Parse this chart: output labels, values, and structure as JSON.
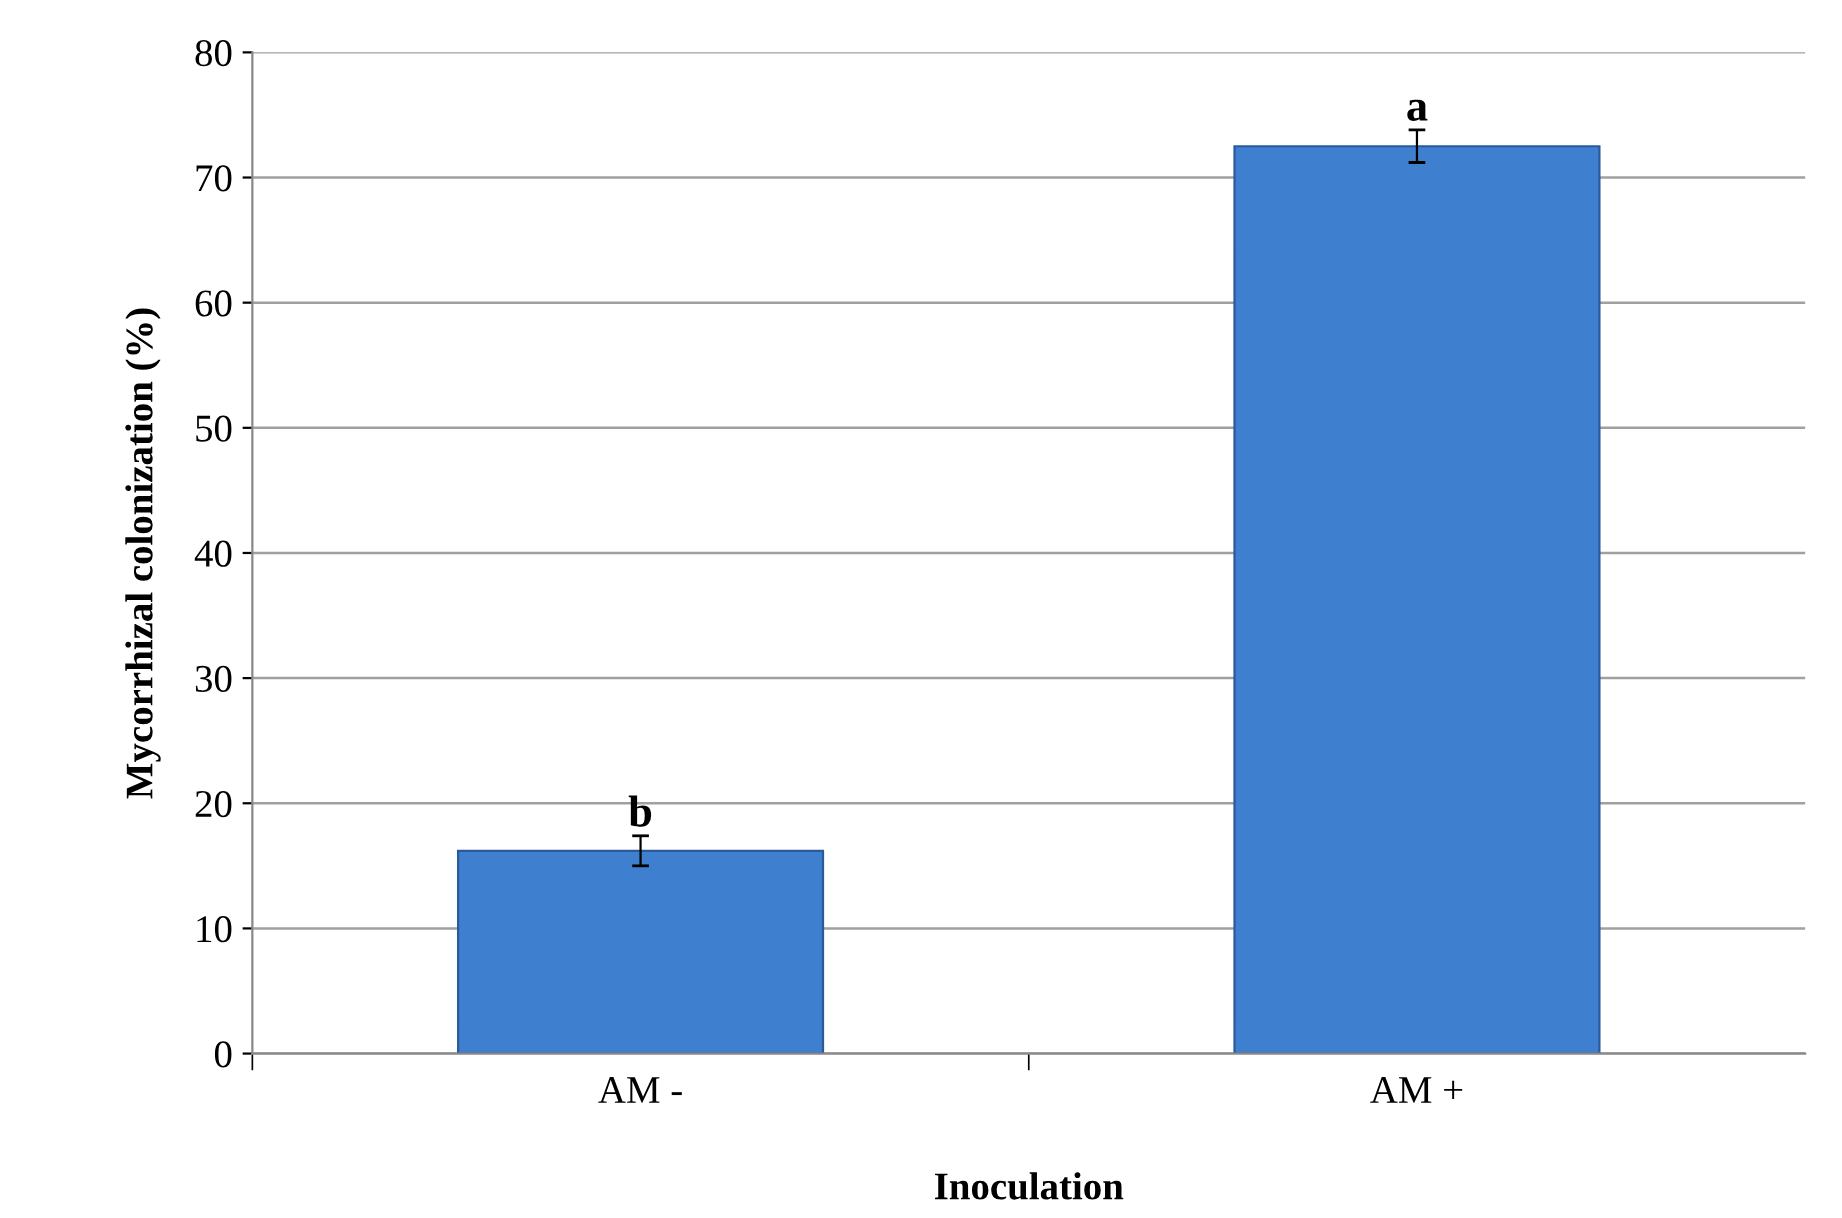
{
  "chart_data": {
    "type": "bar",
    "xlabel": "Inoculation",
    "ylabel": "Mycorrhizal colonization (%)",
    "categories": [
      "AM -",
      "AM +"
    ],
    "values": [
      16.2,
      72.5
    ],
    "errors": [
      1.2,
      1.3
    ],
    "color": "#3f7fd0",
    "ylim": [
      0,
      80
    ],
    "yticks": [
      0,
      10,
      20,
      30,
      40,
      50,
      60,
      70,
      80
    ],
    "grid": "y",
    "annotations": [
      {
        "text": "b",
        "x": "AM -",
        "y": 17.4
      },
      {
        "text": "a",
        "x": "AM +",
        "y": 73.8
      }
    ]
  }
}
